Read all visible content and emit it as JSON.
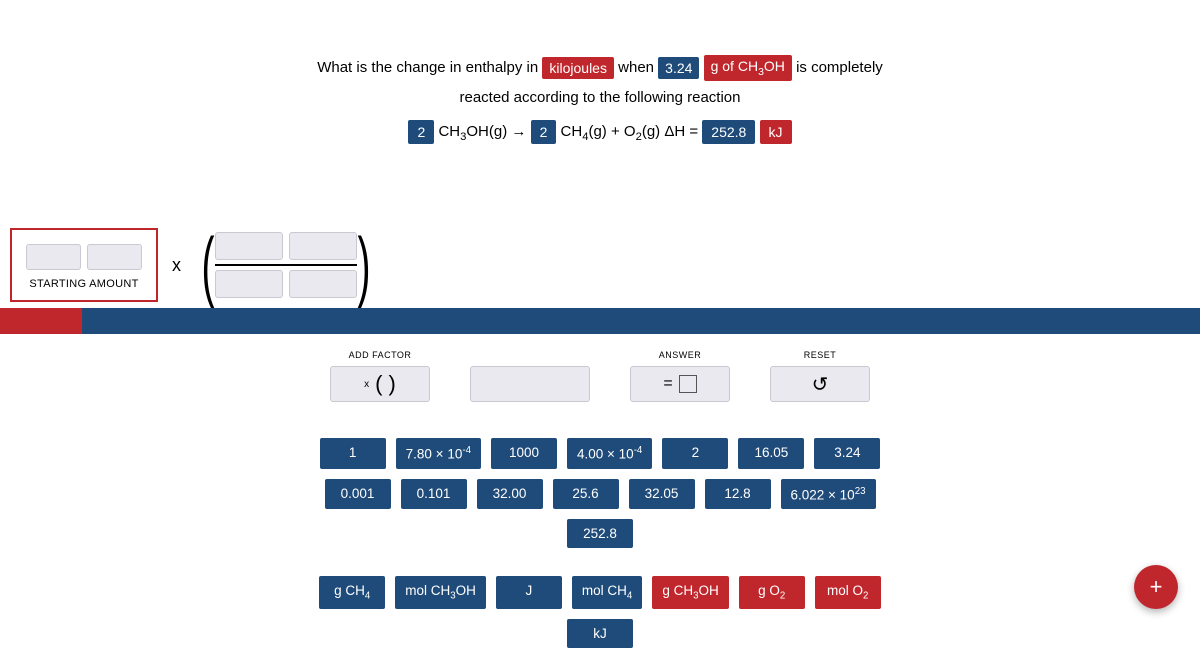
{
  "colors": {
    "blue": "#1f4b7a",
    "red": "#c0272d",
    "slot_bg": "#e9e9ef",
    "slot_border": "#c9c9d2"
  },
  "question": {
    "part1": "What is the change in enthalpy in",
    "chip_kj": "kilojoules",
    "part2": "when",
    "chip_mass": "3.24",
    "chip_species": "g of CH₃OH",
    "part3": "is completely",
    "line2": "reacted according to the following reaction"
  },
  "equation": {
    "coef1": "2",
    "r1": "CH₃OH(g) →",
    "coef2": "2",
    "r2": "CH₄(g) + O₂(g) ΔH =",
    "dh": "252.8",
    "unit": "kJ"
  },
  "workspace": {
    "starting_label": "STARTING AMOUNT",
    "times": "x"
  },
  "controls": {
    "add_factor_label": "ADD FACTOR",
    "add_factor_x": "x",
    "add_factor_parens": "(   )",
    "answer_label": "ANSWER",
    "answer_eq": "=",
    "reset_label": "RESET",
    "reset_icon": "↺"
  },
  "tiles": {
    "num_rows": [
      [
        "1",
        "7.80 × 10⁻⁴",
        "1000",
        "4.00 × 10⁻⁴",
        "2",
        "16.05",
        "3.24"
      ],
      [
        "0.001",
        "0.101",
        "32.00",
        "25.6",
        "32.05",
        "12.8",
        "6.022 × 10²³"
      ],
      [
        "252.8"
      ]
    ],
    "unit_rows": [
      [
        "g CH₄",
        "mol CH₃OH",
        "J",
        "mol CH₄",
        "g CH₃OH",
        "g O₂",
        "mol O₂"
      ],
      [
        "kJ"
      ]
    ],
    "blue_tiles": [
      "7.80 × 10⁻⁴",
      "4.00 × 10⁻⁴",
      "6.022 × 10²³",
      "g CH₄",
      "mol CH₃OH",
      "mol CH₄"
    ],
    "red_tiles": [
      "g CH₃OH",
      "g O₂",
      "mol O₂"
    ]
  },
  "fab": {
    "label": "+"
  }
}
